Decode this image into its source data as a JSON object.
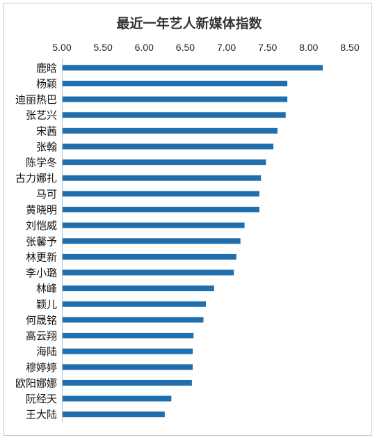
{
  "chart_data": {
    "type": "bar",
    "orientation": "horizontal",
    "title": "最近一年艺人新媒体指数",
    "xlabel": "",
    "ylabel": "",
    "xlim": [
      5.0,
      8.5
    ],
    "xticks": [
      "5.00",
      "5.50",
      "6.00",
      "6.50",
      "7.00",
      "7.50",
      "8.00",
      "8.50"
    ],
    "axis_position": "top",
    "grid": false,
    "legend": "none",
    "bar_color": "#1f6fae",
    "categories": [
      "鹿晗",
      "杨颖",
      "迪丽热巴",
      "张艺兴",
      "宋茜",
      "张翰",
      "陈学冬",
      "古力娜扎",
      "马可",
      "黄晓明",
      "刘恺威",
      "张馨予",
      "林更新",
      "李小璐",
      "林峰",
      "颖儿",
      "何晟铭",
      "高云翔",
      "海陆",
      "穆婷婷",
      "欧阳娜娜",
      "阮经天",
      "王大陆"
    ],
    "values": [
      8.17,
      7.74,
      7.74,
      7.72,
      7.62,
      7.57,
      7.48,
      7.42,
      7.4,
      7.4,
      7.22,
      7.17,
      7.12,
      7.09,
      6.85,
      6.75,
      6.72,
      6.6,
      6.59,
      6.59,
      6.58,
      6.33,
      6.25
    ]
  }
}
